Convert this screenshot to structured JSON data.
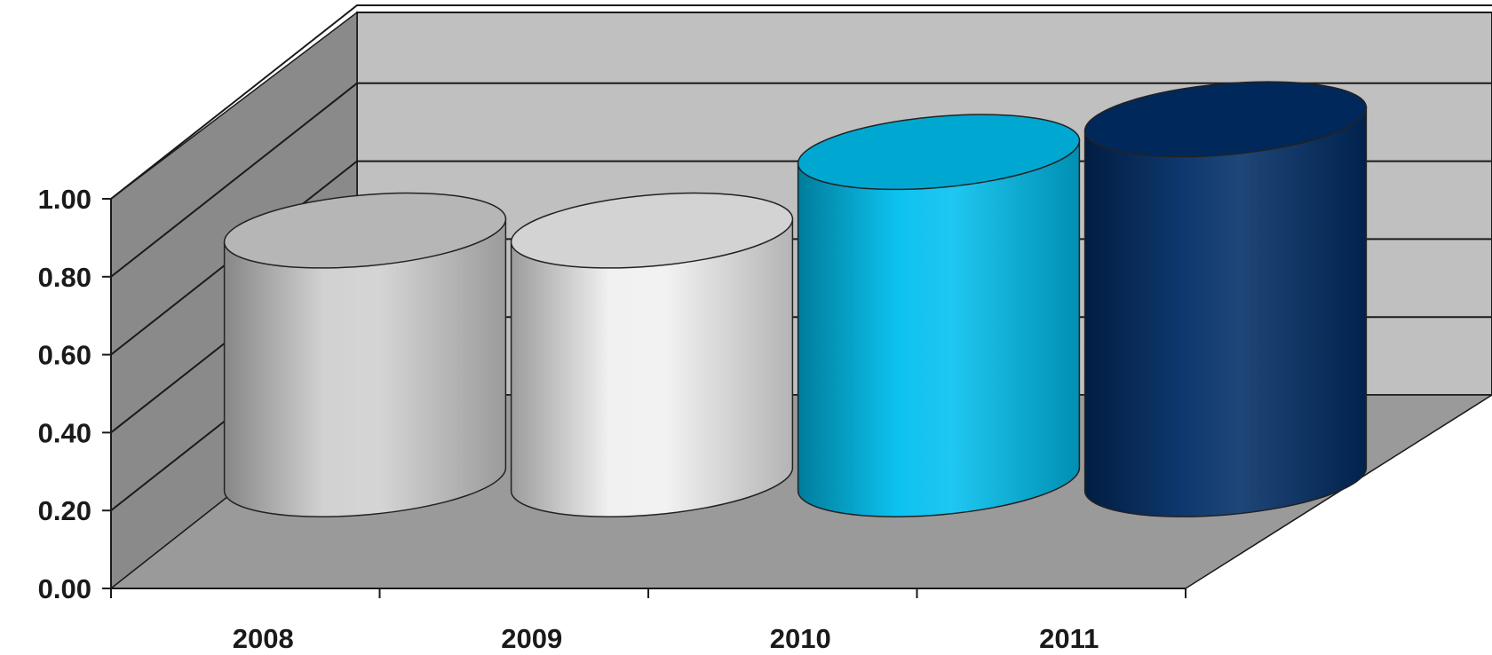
{
  "chart_data": {
    "type": "bar",
    "style": "3d-cylinder",
    "categories": [
      "2008",
      "2009",
      "2010",
      "2011"
    ],
    "values": [
      0.76,
      0.76,
      1.0,
      1.1
    ],
    "bar_colors": [
      "#cfcfcf",
      "#f0f0f0",
      "#00bfee",
      "#012d66"
    ],
    "y_ticks": [
      "0.00",
      "0.20",
      "0.40",
      "0.60",
      "0.80",
      "1.00"
    ],
    "ylim": [
      0,
      1.0
    ],
    "grid": true,
    "legend": "none",
    "title": "",
    "xlabel": "",
    "ylabel": "",
    "colors": {
      "back_wall": "#c0c0c0",
      "side_wall": "#8a8a8a",
      "floor": "#9a9a9a",
      "gridline": "#1a1a1a"
    }
  }
}
